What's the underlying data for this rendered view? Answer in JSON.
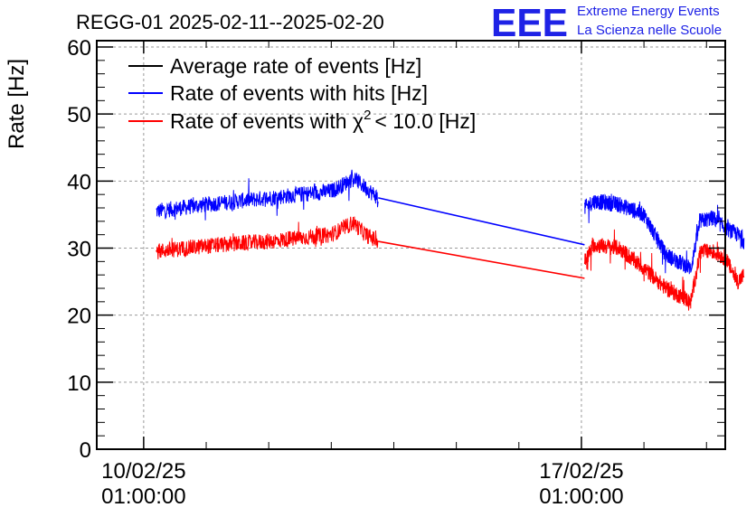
{
  "chart_data": {
    "type": "line",
    "title": "REGG-01 2025-02-11--2025-02-20",
    "ylabel": "Rate [Hz]",
    "xlabel": "",
    "ylim": [
      0,
      60
    ],
    "xlim_days": [
      -0.75,
      9.3
    ],
    "yticks": [
      0,
      10,
      20,
      30,
      40,
      50,
      60
    ],
    "xticks": [
      {
        "day": 0,
        "label_date": "10/02/25",
        "label_time": "01:00:00"
      },
      {
        "day": 7,
        "label_date": "17/02/25",
        "label_time": "01:00:00"
      }
    ],
    "grid": true,
    "legend": [
      {
        "name": "Average rate of events [Hz]",
        "color": "#000000"
      },
      {
        "name": "Rate of events with hits [Hz]",
        "color": "#0000ff"
      },
      {
        "name": "Rate of events with",
        "chi_symbol": "χ",
        "superscript": "2",
        "rest": "< 10.0 [Hz]",
        "color": "#ff0000"
      }
    ],
    "series": [
      {
        "name": "Average rate of events [Hz]",
        "color": "#000000",
        "segments": []
      },
      {
        "name": "Rate of events with hits [Hz]",
        "color": "#0000ff",
        "noise": 1.2,
        "segments": [
          {
            "x": [
              0.2,
              1.0,
              2.0,
              3.0,
              3.2,
              3.35,
              3.55,
              3.75
            ],
            "y": [
              35.5,
              36.5,
              37.5,
              38.5,
              39.5,
              40.5,
              39.0,
              37.5
            ]
          },
          {
            "x": [
              7.05,
              7.2,
              7.6,
              8.0,
              8.35,
              8.75,
              8.9,
              9.1,
              9.3,
              9.5,
              9.6
            ],
            "y": [
              36.0,
              37.0,
              36.5,
              35.0,
              29.0,
              27.0,
              34.0,
              34.5,
              33.0,
              32.0,
              31.0
            ]
          }
        ],
        "gap_line": {
          "x": [
            3.75,
            7.05
          ],
          "y": [
            37.5,
            30.5
          ]
        }
      },
      {
        "name": "Rate of events with chi2 < 10.0 [Hz]",
        "color": "#ff0000",
        "noise": 1.2,
        "segments": [
          {
            "x": [
              0.2,
              1.0,
              2.0,
              3.0,
              3.2,
              3.35,
              3.55,
              3.75
            ],
            "y": [
              29.5,
              30.3,
              31.0,
              32.0,
              33.0,
              33.8,
              32.0,
              31.0
            ]
          },
          {
            "x": [
              7.05,
              7.2,
              7.6,
              8.0,
              8.35,
              8.75,
              8.9,
              9.1,
              9.3,
              9.5,
              9.6
            ],
            "y": [
              28.0,
              30.5,
              30.0,
              27.0,
              24.0,
              22.0,
              29.5,
              29.5,
              28.5,
              25.0,
              26.0
            ]
          }
        ],
        "gap_line": {
          "x": [
            3.75,
            7.05
          ],
          "y": [
            31.0,
            25.5
          ]
        }
      }
    ]
  },
  "logo": {
    "mark": "EEE",
    "line1": "Extreme Energy Events",
    "line2": "La Scienza nelle Scuole",
    "color": "#1e22e6"
  }
}
